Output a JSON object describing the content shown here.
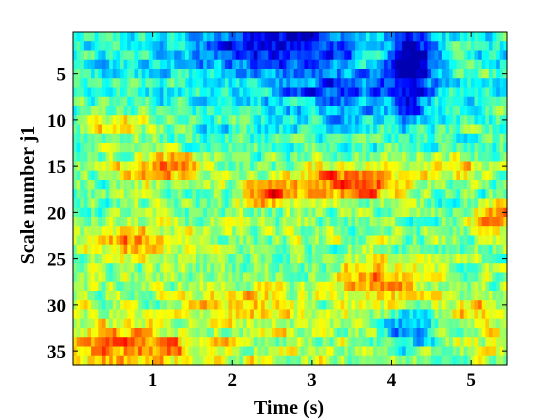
{
  "chart_data": {
    "type": "heatmap",
    "title": "",
    "xlabel": "Time (s)",
    "ylabel": "Scale number j1",
    "xlim": [
      0,
      5.45
    ],
    "ylim": [
      0.5,
      36.5
    ],
    "y_reversed": true,
    "x_ticks": [
      1,
      2,
      3,
      4,
      5
    ],
    "x_tick_labels": [
      "1",
      "2",
      "3",
      "4",
      "5"
    ],
    "y_ticks": [
      5,
      10,
      15,
      20,
      25,
      30,
      35
    ],
    "y_tick_labels": [
      "5",
      "10",
      "15",
      "20",
      "25",
      "30",
      "35"
    ],
    "colormap": "jet",
    "colormap_stops": [
      "#00008f",
      "#0000ff",
      "#00ffff",
      "#ffff00",
      "#ff0000",
      "#800000"
    ],
    "grid": false,
    "legend": "none",
    "num_scales": 36,
    "num_time_bins": 120,
    "hot_regions": [
      {
        "t": 1.1,
        "scale": 15.2,
        "amp": 0.3,
        "width_t": 0.6,
        "width_s": 1.8
      },
      {
        "t": 0.5,
        "scale": 10.5,
        "amp": 0.22,
        "width_t": 0.5,
        "width_s": 1.5
      },
      {
        "t": 2.4,
        "scale": 18.0,
        "amp": 0.35,
        "width_t": 0.35,
        "width_s": 1.3
      },
      {
        "t": 3.3,
        "scale": 16.5,
        "amp": 0.3,
        "width_t": 0.6,
        "width_s": 2.0
      },
      {
        "t": 3.8,
        "scale": 17.0,
        "amp": 0.22,
        "width_t": 0.5,
        "width_s": 1.5
      },
      {
        "t": 4.6,
        "scale": 15.0,
        "amp": 0.25,
        "width_t": 0.5,
        "width_s": 1.5
      },
      {
        "t": 5.3,
        "scale": 20.5,
        "amp": 0.3,
        "width_t": 0.3,
        "width_s": 1.5
      },
      {
        "t": 0.8,
        "scale": 23.0,
        "amp": 0.22,
        "width_t": 0.7,
        "width_s": 1.5
      },
      {
        "t": 3.7,
        "scale": 27.5,
        "amp": 0.25,
        "width_t": 0.5,
        "width_s": 2.5
      },
      {
        "t": 0.6,
        "scale": 34.5,
        "amp": 0.25,
        "width_t": 0.9,
        "width_s": 2.0
      },
      {
        "t": 2.0,
        "scale": 30.0,
        "amp": 0.15,
        "width_t": 0.6,
        "width_s": 2.0
      },
      {
        "t": 4.9,
        "scale": 31.0,
        "amp": 0.15,
        "width_t": 0.4,
        "width_s": 2.0
      }
    ],
    "cold_regions": [
      {
        "t": 4.2,
        "scale": 4.0,
        "amp": 0.45,
        "width_t": 0.25,
        "width_s": 5.0
      },
      {
        "t": 2.5,
        "scale": 2.0,
        "amp": 0.3,
        "width_t": 0.9,
        "width_s": 3.0
      },
      {
        "t": 4.2,
        "scale": 33.0,
        "amp": 0.3,
        "width_t": 0.4,
        "width_s": 2.5
      },
      {
        "t": 3.3,
        "scale": 7.0,
        "amp": 0.2,
        "width_t": 0.8,
        "width_s": 3.0
      }
    ]
  }
}
